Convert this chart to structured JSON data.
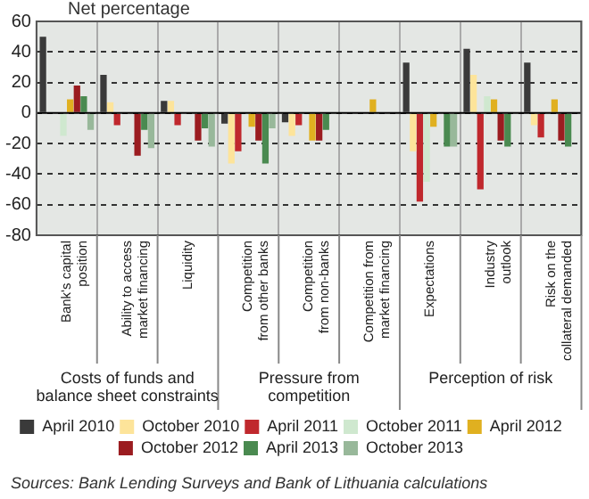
{
  "chart_data": {
    "type": "bar",
    "ylabel": "Net percentage",
    "categories": [
      "Bank's capital position",
      "Ability to access market financing",
      "Liquidity",
      "Competition from other banks",
      "Competition from non-banks",
      "Competition from market financing",
      "Expectations",
      "Industry outlook",
      "Risk on the collateral demanded"
    ],
    "series": [
      {
        "name": "April 2010",
        "color": "#3a3a3a",
        "values": [
          50,
          25,
          8,
          -7,
          -6,
          0,
          33,
          42,
          33
        ]
      },
      {
        "name": "October 2010",
        "color": "#fde49a",
        "values": [
          0,
          7,
          8,
          -33,
          -15,
          0,
          -25,
          25,
          -8
        ]
      },
      {
        "name": "April 2011",
        "color": "#c0282d",
        "values": [
          0,
          -8,
          -8,
          -25,
          -8,
          0,
          -58,
          -50,
          -16
        ]
      },
      {
        "name": "October 2011",
        "color": "#cfe8cf",
        "values": [
          -15,
          0,
          0,
          0,
          0,
          0,
          -45,
          11,
          0
        ]
      },
      {
        "name": "April 2012",
        "color": "#e0b020",
        "values": [
          9,
          0,
          0,
          -9,
          -18,
          9,
          -9,
          9,
          9
        ]
      },
      {
        "name": "October 2012",
        "color": "#9b1c20",
        "values": [
          18,
          -28,
          -18,
          -18,
          -18,
          0,
          0,
          -18,
          -18
        ]
      },
      {
        "name": "April 2013",
        "color": "#4a8a50",
        "values": [
          11,
          -11,
          -10,
          -33,
          -11,
          0,
          -22,
          -22,
          -22
        ]
      },
      {
        "name": "October 2013",
        "color": "#98b89a",
        "values": [
          -11,
          -23,
          -22,
          -10,
          0,
          0,
          -22,
          0,
          0
        ]
      }
    ],
    "ylim": [
      -80,
      60
    ],
    "yticks": [
      -80,
      -60,
      -40,
      -20,
      0,
      20,
      40,
      60
    ],
    "grid": true,
    "legend": "bottom",
    "annotations": [
      "Costs of funds and balance sheet constraints",
      "Pressure from competition",
      "Perception of risk",
      "Sources: Bank Lending Surveys and Bank of Lithuania calculations"
    ]
  }
}
